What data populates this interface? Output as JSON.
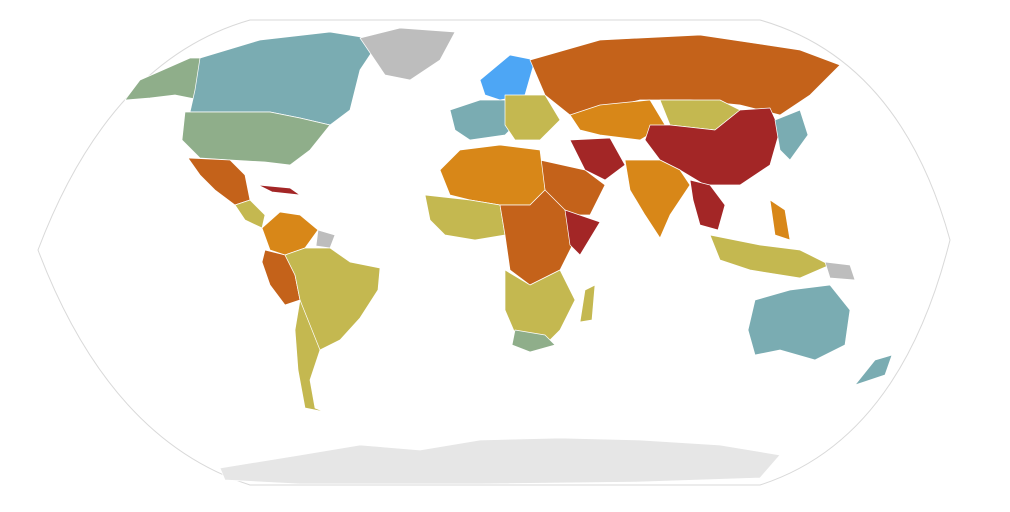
{
  "map": {
    "projection": "robinson",
    "colors": {
      "good": "#4da6f5",
      "satisfactory": "#7aacb2",
      "fairly_good": "#8fae8a",
      "problematic": "#c4b850",
      "difficult": "#d88718",
      "bad": "#c4621a",
      "very_serious": "#a32626",
      "no_data": "#bdbdbd",
      "antarctica": "#e6e6e6",
      "outline": "#d9d9d9"
    }
  }
}
